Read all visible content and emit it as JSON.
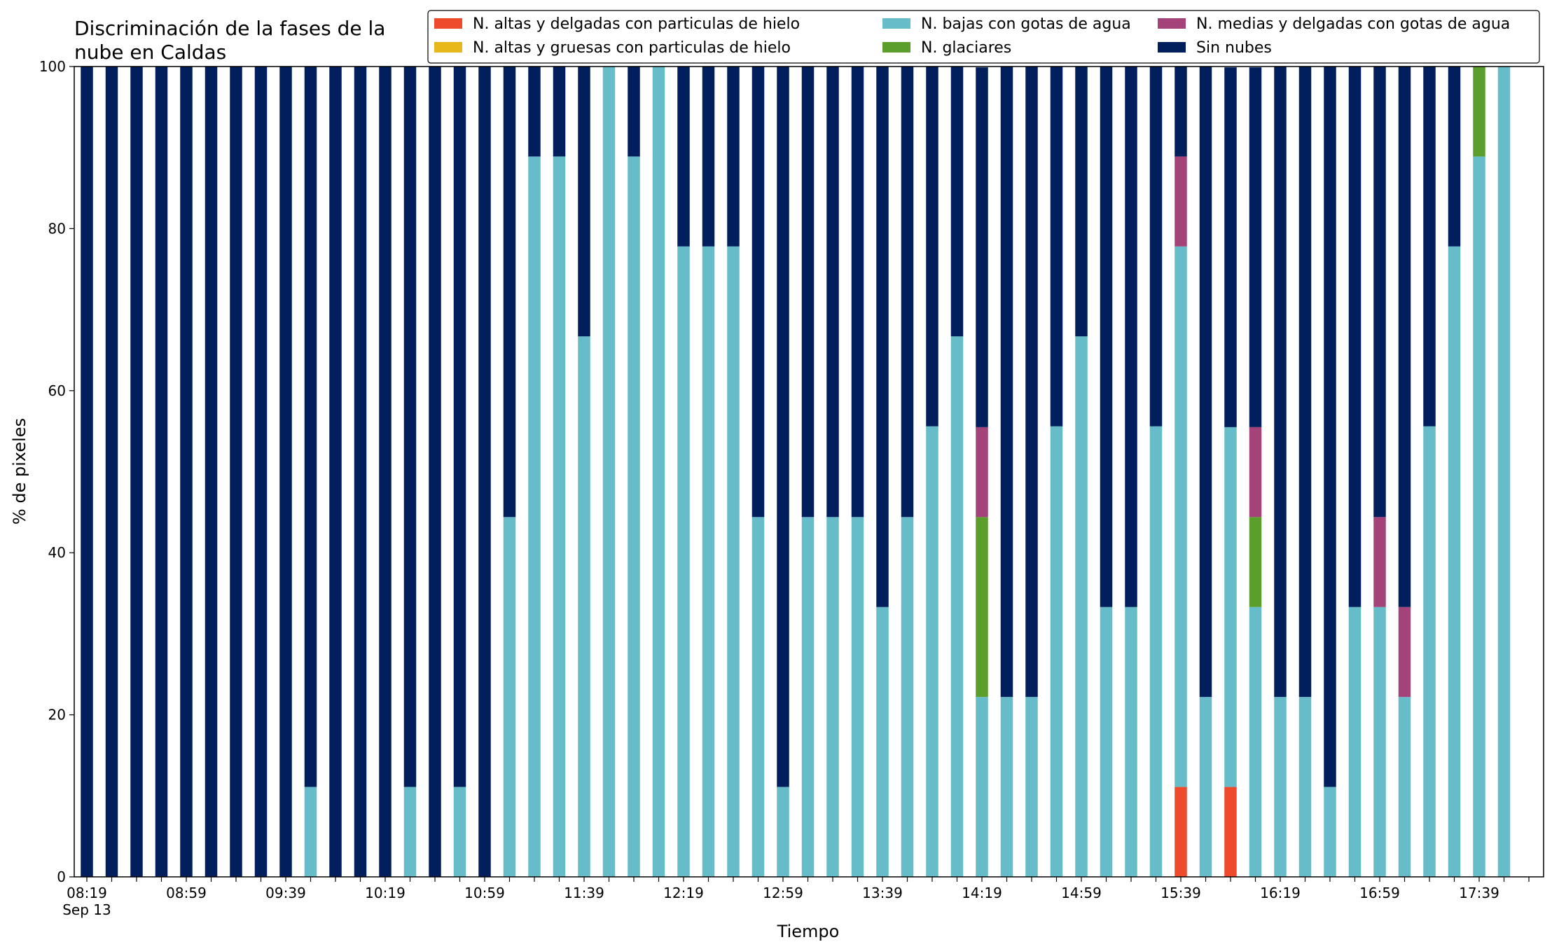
{
  "chart_data": {
    "type": "bar",
    "stacked": true,
    "title_lines": [
      "Discriminación de la fases de la",
      "nube en Caldas"
    ],
    "xlabel": "Tiempo",
    "ylabel": "% de pixeles",
    "ylim": [
      0,
      100
    ],
    "yticks": [
      0,
      20,
      40,
      60,
      80,
      100
    ],
    "grid": false,
    "legend_position": "top-right",
    "x_tick_labels": [
      {
        "index": 0,
        "label": "08:19",
        "sublabel": "Sep 13"
      },
      {
        "index": 4,
        "label": "08:59"
      },
      {
        "index": 8,
        "label": "09:39"
      },
      {
        "index": 12,
        "label": "10:19"
      },
      {
        "index": 16,
        "label": "10:59"
      },
      {
        "index": 20,
        "label": "11:39"
      },
      {
        "index": 24,
        "label": "12:19"
      },
      {
        "index": 28,
        "label": "12:59"
      },
      {
        "index": 32,
        "label": "13:39"
      },
      {
        "index": 36,
        "label": "14:19"
      },
      {
        "index": 40,
        "label": "14:59"
      },
      {
        "index": 44,
        "label": "15:39"
      },
      {
        "index": 48,
        "label": "16:19"
      },
      {
        "index": 52,
        "label": "16:59"
      },
      {
        "index": 56,
        "label": "17:39"
      }
    ],
    "series": [
      {
        "name": "N. altas y delgadas con particulas de hielo",
        "color": "#ee4a2c",
        "values": [
          0,
          0,
          0,
          0,
          0,
          0,
          0,
          0,
          0,
          0,
          0,
          0,
          0,
          0,
          0,
          0,
          0,
          0,
          0,
          0,
          0,
          0,
          0,
          0,
          0,
          0,
          0,
          0,
          0,
          0,
          0,
          0,
          0,
          0,
          0,
          0,
          0,
          0,
          0,
          0,
          0,
          0,
          0,
          0,
          11.1,
          0,
          11.1,
          0,
          0,
          0,
          0,
          0,
          0,
          0,
          0,
          0,
          0,
          0,
          0
        ]
      },
      {
        "name": "N. altas y gruesas con particulas de hielo",
        "color": "#e8b81a",
        "values": [
          0,
          0,
          0,
          0,
          0,
          0,
          0,
          0,
          0,
          0,
          0,
          0,
          0,
          0,
          0,
          0,
          0,
          0,
          0,
          0,
          0,
          0,
          0,
          0,
          0,
          0,
          0,
          0,
          0,
          0,
          0,
          0,
          0,
          0,
          0,
          0,
          0,
          0,
          0,
          0,
          0,
          0,
          0,
          0,
          0,
          0,
          0,
          0,
          0,
          0,
          0,
          0,
          0,
          0,
          0,
          0,
          0,
          0,
          0
        ]
      },
      {
        "name": "N. bajas con gotas de agua",
        "color": "#66bdc9",
        "values": [
          0,
          0,
          0,
          0,
          0,
          0,
          0,
          0,
          0,
          11.1,
          0,
          0,
          0,
          11.1,
          0,
          11.1,
          0,
          44.4,
          88.9,
          88.9,
          66.7,
          100,
          88.9,
          100,
          77.8,
          77.8,
          77.8,
          44.4,
          11.1,
          44.4,
          44.4,
          44.4,
          33.3,
          44.4,
          55.6,
          66.7,
          22.2,
          22.2,
          22.2,
          55.6,
          66.7,
          33.3,
          33.3,
          55.6,
          66.7,
          22.2,
          44.4,
          33.3,
          22.2,
          22.2,
          11.1,
          33.3,
          33.3,
          22.2,
          55.6,
          77.8,
          88.9,
          100,
          0
        ]
      },
      {
        "name": "N. glaciares",
        "color": "#5c9e2c",
        "values": [
          0,
          0,
          0,
          0,
          0,
          0,
          0,
          0,
          0,
          0,
          0,
          0,
          0,
          0,
          0,
          0,
          0,
          0,
          0,
          0,
          0,
          0,
          0,
          0,
          0,
          0,
          0,
          0,
          0,
          0,
          0,
          0,
          0,
          0,
          0,
          0,
          22.2,
          0,
          0,
          0,
          0,
          0,
          0,
          0,
          0,
          0,
          0,
          11.1,
          0,
          0,
          0,
          0,
          0,
          0,
          0,
          0,
          11.1,
          0,
          0
        ]
      },
      {
        "name": "N. medias y delgadas con gotas de agua",
        "color": "#a4437a",
        "values": [
          0,
          0,
          0,
          0,
          0,
          0,
          0,
          0,
          0,
          0,
          0,
          0,
          0,
          0,
          0,
          0,
          0,
          0,
          0,
          0,
          0,
          0,
          0,
          0,
          0,
          0,
          0,
          0,
          0,
          0,
          0,
          0,
          0,
          0,
          0,
          0,
          11.1,
          0,
          0,
          0,
          0,
          0,
          0,
          0,
          11.1,
          0,
          0,
          11.1,
          0,
          0,
          0,
          0,
          11.1,
          11.1,
          0,
          0,
          0,
          0,
          0
        ]
      },
      {
        "name": "Sin nubes",
        "color": "#001f5c",
        "values": [
          100,
          100,
          100,
          100,
          100,
          100,
          100,
          100,
          100,
          88.9,
          100,
          100,
          100,
          88.9,
          100,
          88.9,
          100,
          55.6,
          11.1,
          11.1,
          33.3,
          0,
          11.1,
          0,
          22.2,
          22.2,
          22.2,
          55.6,
          88.9,
          55.6,
          55.6,
          55.6,
          66.7,
          55.6,
          44.4,
          33.3,
          44.4,
          77.8,
          77.8,
          44.4,
          33.3,
          66.7,
          66.7,
          44.4,
          11.1,
          77.8,
          44.4,
          44.4,
          77.8,
          77.8,
          88.9,
          66.7,
          55.6,
          66.7,
          44.4,
          22.2,
          0,
          0,
          0
        ]
      }
    ]
  }
}
